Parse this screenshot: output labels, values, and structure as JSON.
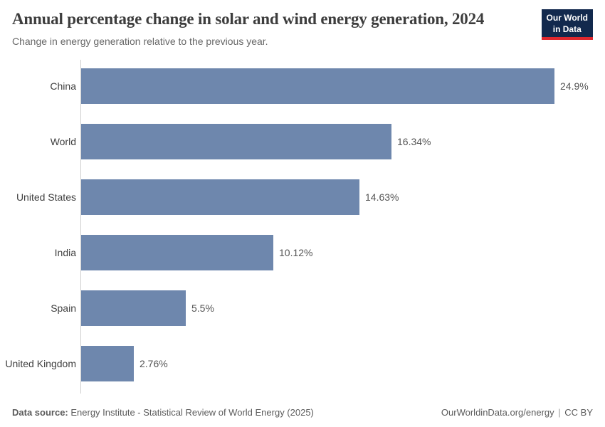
{
  "header": {
    "title": "Annual percentage change in solar and wind energy generation, 2024",
    "subtitle": "Change in energy generation relative to the previous year.",
    "logo": {
      "line1": "Our World",
      "line2": "in Data",
      "bg_color": "#12294d",
      "underline_color": "#e0282e"
    }
  },
  "chart_data": {
    "type": "bar",
    "orientation": "horizontal",
    "title": "Annual percentage change in solar and wind energy generation, 2024",
    "xlabel": "",
    "ylabel": "",
    "categories": [
      "China",
      "World",
      "United States",
      "India",
      "Spain",
      "United Kingdom"
    ],
    "values": [
      24.9,
      16.34,
      14.63,
      10.12,
      5.5,
      2.76
    ],
    "value_labels": [
      "24.9%",
      "16.34%",
      "14.63%",
      "10.12%",
      "5.5%",
      "2.76%"
    ],
    "unit": "%",
    "xlim": [
      0,
      24.9
    ],
    "bar_color": "#6e87ad",
    "grid": false,
    "legend": false
  },
  "footer": {
    "source_label": "Data source:",
    "source_value": " Energy Institute - Statistical Review of World Energy (2025)",
    "url": "OurWorldinData.org/energy",
    "separator": "|",
    "license": "CC BY"
  }
}
